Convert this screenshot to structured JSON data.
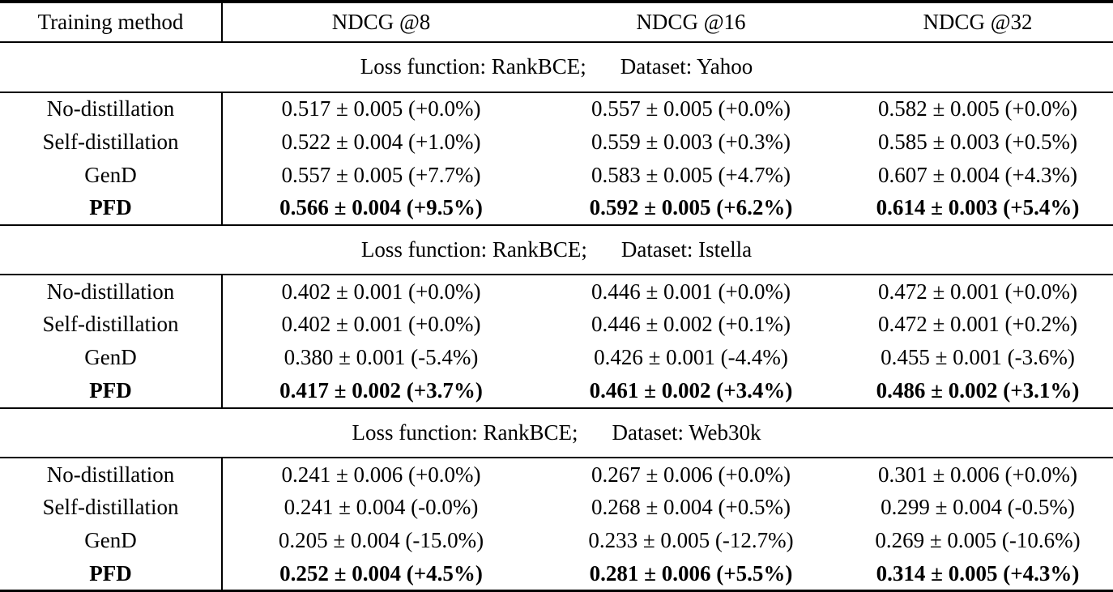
{
  "colors": {
    "text": "#000000",
    "background": "#ffffff",
    "rule": "#000000"
  },
  "table": {
    "columns": [
      "Training method",
      "NDCG @8",
      "NDCG @16",
      "NDCG @32"
    ],
    "sections": [
      {
        "loss_label": "Loss function: RankBCE;",
        "dataset_label": "Dataset: Yahoo",
        "rows": [
          {
            "method": "No-distillation",
            "bold": false,
            "values": [
              "0.517 ± 0.005 (+0.0%)",
              "0.557 ± 0.005 (+0.0%)",
              "0.582 ± 0.005 (+0.0%)"
            ]
          },
          {
            "method": "Self-distillation",
            "bold": false,
            "values": [
              "0.522 ± 0.004 (+1.0%)",
              "0.559 ± 0.003 (+0.3%)",
              "0.585 ± 0.003 (+0.5%)"
            ]
          },
          {
            "method": "GenD",
            "bold": false,
            "values": [
              "0.557 ± 0.005 (+7.7%)",
              "0.583 ± 0.005 (+4.7%)",
              "0.607 ± 0.004 (+4.3%)"
            ]
          },
          {
            "method": "PFD",
            "bold": true,
            "values": [
              "0.566 ± 0.004 (+9.5%)",
              "0.592 ± 0.005 (+6.2%)",
              "0.614 ± 0.003 (+5.4%)"
            ]
          }
        ]
      },
      {
        "loss_label": "Loss function: RankBCE;",
        "dataset_label": "Dataset: Istella",
        "rows": [
          {
            "method": "No-distillation",
            "bold": false,
            "values": [
              "0.402 ± 0.001 (+0.0%)",
              "0.446 ± 0.001 (+0.0%)",
              "0.472 ± 0.001 (+0.0%)"
            ]
          },
          {
            "method": "Self-distillation",
            "bold": false,
            "values": [
              "0.402 ± 0.001 (+0.0%)",
              "0.446 ± 0.002 (+0.1%)",
              "0.472 ± 0.001 (+0.2%)"
            ]
          },
          {
            "method": "GenD",
            "bold": false,
            "values": [
              "0.380 ± 0.001 (-5.4%)",
              "0.426 ± 0.001 (-4.4%)",
              "0.455 ± 0.001 (-3.6%)"
            ]
          },
          {
            "method": "PFD",
            "bold": true,
            "values": [
              "0.417 ± 0.002 (+3.7%)",
              "0.461 ± 0.002 (+3.4%)",
              "0.486 ± 0.002 (+3.1%)"
            ]
          }
        ]
      },
      {
        "loss_label": "Loss function: RankBCE;",
        "dataset_label": "Dataset: Web30k",
        "rows": [
          {
            "method": "No-distillation",
            "bold": false,
            "values": [
              "0.241 ± 0.006 (+0.0%)",
              "0.267 ± 0.006 (+0.0%)",
              "0.301 ± 0.006 (+0.0%)"
            ]
          },
          {
            "method": "Self-distillation",
            "bold": false,
            "values": [
              "0.241 ± 0.004 (-0.0%)",
              "0.268 ± 0.004 (+0.5%)",
              "0.299 ± 0.004 (-0.5%)"
            ]
          },
          {
            "method": "GenD",
            "bold": false,
            "values": [
              "0.205 ± 0.004 (-15.0%)",
              "0.233 ± 0.005 (-12.7%)",
              "0.269 ± 0.005 (-10.6%)"
            ]
          },
          {
            "method": "PFD",
            "bold": true,
            "values": [
              "0.252 ± 0.004 (+4.5%)",
              "0.281 ± 0.006 (+5.5%)",
              "0.314 ± 0.005 (+4.3%)"
            ]
          }
        ]
      }
    ]
  }
}
